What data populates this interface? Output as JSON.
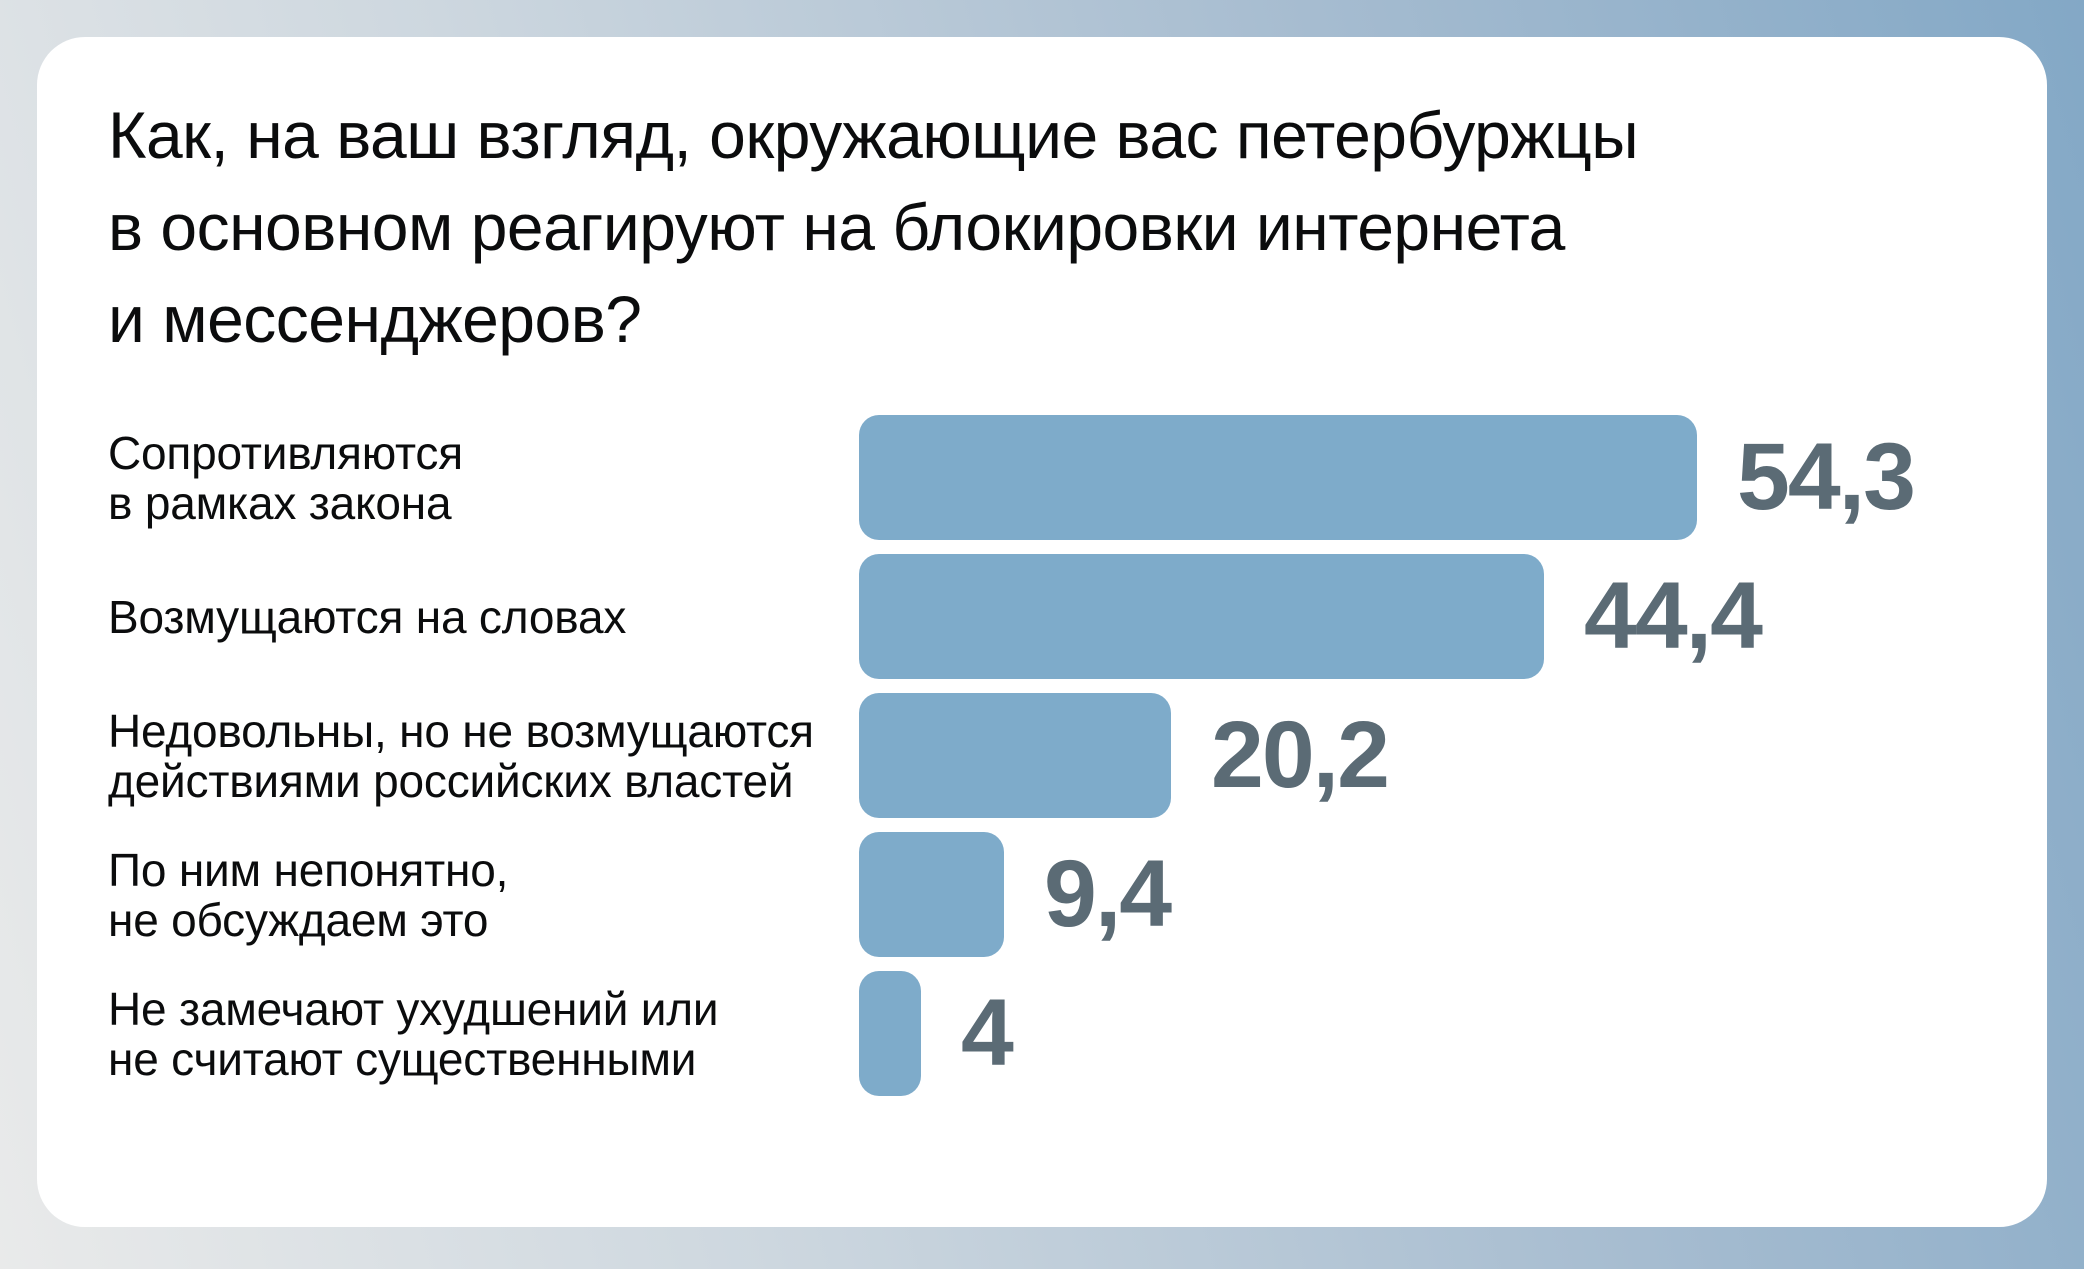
{
  "page": {
    "title_lines": [
      "Как, на ваш взгляд, окружающие вас петербуржцы",
      "в основном реагируют на блокировки интернета",
      "и мессенджеров?"
    ]
  },
  "chart_data": {
    "type": "bar",
    "orientation": "horizontal",
    "title": "Как, на ваш взгляд, окружающие вас петербуржцы в основном реагируют на блокировки интернета и мессенджеров?",
    "categories": [
      "Сопротивляются в рамках закона",
      "Возмущаются на словах",
      "Недовольны, но не возмущаются действиями российских властей",
      "По ним непонятно, не обсуждаем это",
      "Не замечают ухудшений или не считают существенными"
    ],
    "values": [
      54.3,
      44.4,
      20.2,
      9.4,
      4
    ],
    "value_labels": [
      "54,3",
      "44,4",
      "20,2",
      "9,4",
      "4"
    ],
    "xlim": [
      0,
      54.3
    ],
    "grid": "off",
    "legend": "none",
    "rows": [
      {
        "lines": [
          "Сопротивляются",
          "в рамках закона"
        ],
        "value": 54.3,
        "value_label": "54,3"
      },
      {
        "lines": [
          "Возмущаются на словах"
        ],
        "value": 44.4,
        "value_label": "44,4"
      },
      {
        "lines": [
          "Недовольны, но не возмущаются",
          "действиями российских властей"
        ],
        "value": 20.2,
        "value_label": "20,2"
      },
      {
        "lines": [
          "По ним непонятно,",
          "не обсуждаем это"
        ],
        "value": 9.4,
        "value_label": "9,4"
      },
      {
        "lines": [
          "Не замечают ухудшений или",
          "не считают существенными"
        ],
        "value": 4,
        "value_label": "4"
      }
    ],
    "colors": {
      "bar": "#7eabca",
      "value_text": "#5b6b75",
      "text": "#0b0c0d",
      "card": "#ffffff",
      "background_start": "#e9eaea",
      "background_end": "#83a8c6"
    }
  }
}
